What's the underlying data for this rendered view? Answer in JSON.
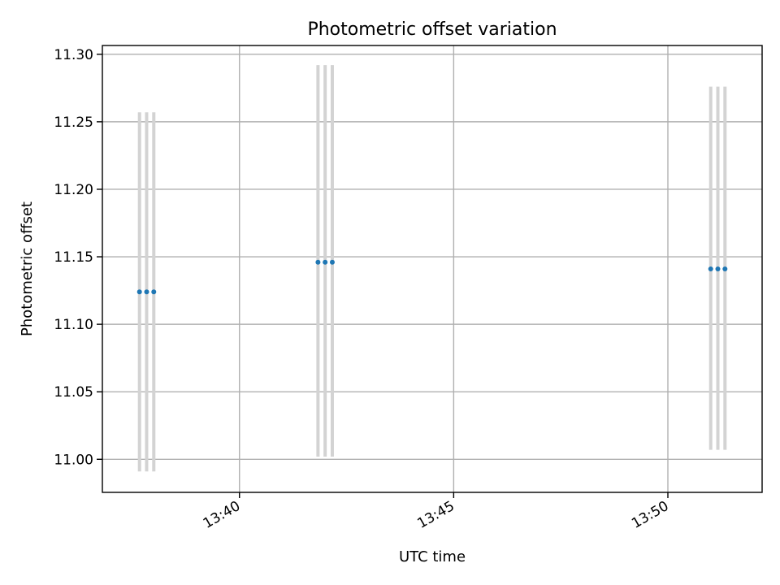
{
  "chart_data": {
    "type": "scatter",
    "title": "Photometric offset variation",
    "xlabel": "UTC time",
    "ylabel": "Photometric offset",
    "x_axis_type": "time",
    "xlim": [
      "13:36:48",
      "13:52:12"
    ],
    "ylim": [
      10.9755,
      11.3065
    ],
    "x_ticks": [
      "13:40",
      "13:45",
      "13:50"
    ],
    "y_ticks": [
      "11.00",
      "11.05",
      "11.10",
      "11.15",
      "11.20",
      "11.25",
      "11.30"
    ],
    "grid": true,
    "series": [
      {
        "marker_color": "#1f77b4",
        "errorbar_color": "#d3d3d3",
        "points": [
          {
            "x": "13:37:40",
            "y": 11.124,
            "ylow": 10.991,
            "yhigh": 11.257
          },
          {
            "x": "13:37:50",
            "y": 11.124,
            "ylow": 10.991,
            "yhigh": 11.257
          },
          {
            "x": "13:38:00",
            "y": 11.124,
            "ylow": 10.991,
            "yhigh": 11.257
          },
          {
            "x": "13:41:50",
            "y": 11.146,
            "ylow": 11.002,
            "yhigh": 11.292
          },
          {
            "x": "13:42:00",
            "y": 11.146,
            "ylow": 11.002,
            "yhigh": 11.292
          },
          {
            "x": "13:42:10",
            "y": 11.146,
            "ylow": 11.002,
            "yhigh": 11.292
          },
          {
            "x": "13:51:00",
            "y": 11.141,
            "ylow": 11.007,
            "yhigh": 11.276
          },
          {
            "x": "13:51:10",
            "y": 11.141,
            "ylow": 11.007,
            "yhigh": 11.276
          },
          {
            "x": "13:51:20",
            "y": 11.141,
            "ylow": 11.007,
            "yhigh": 11.276
          }
        ]
      }
    ]
  }
}
